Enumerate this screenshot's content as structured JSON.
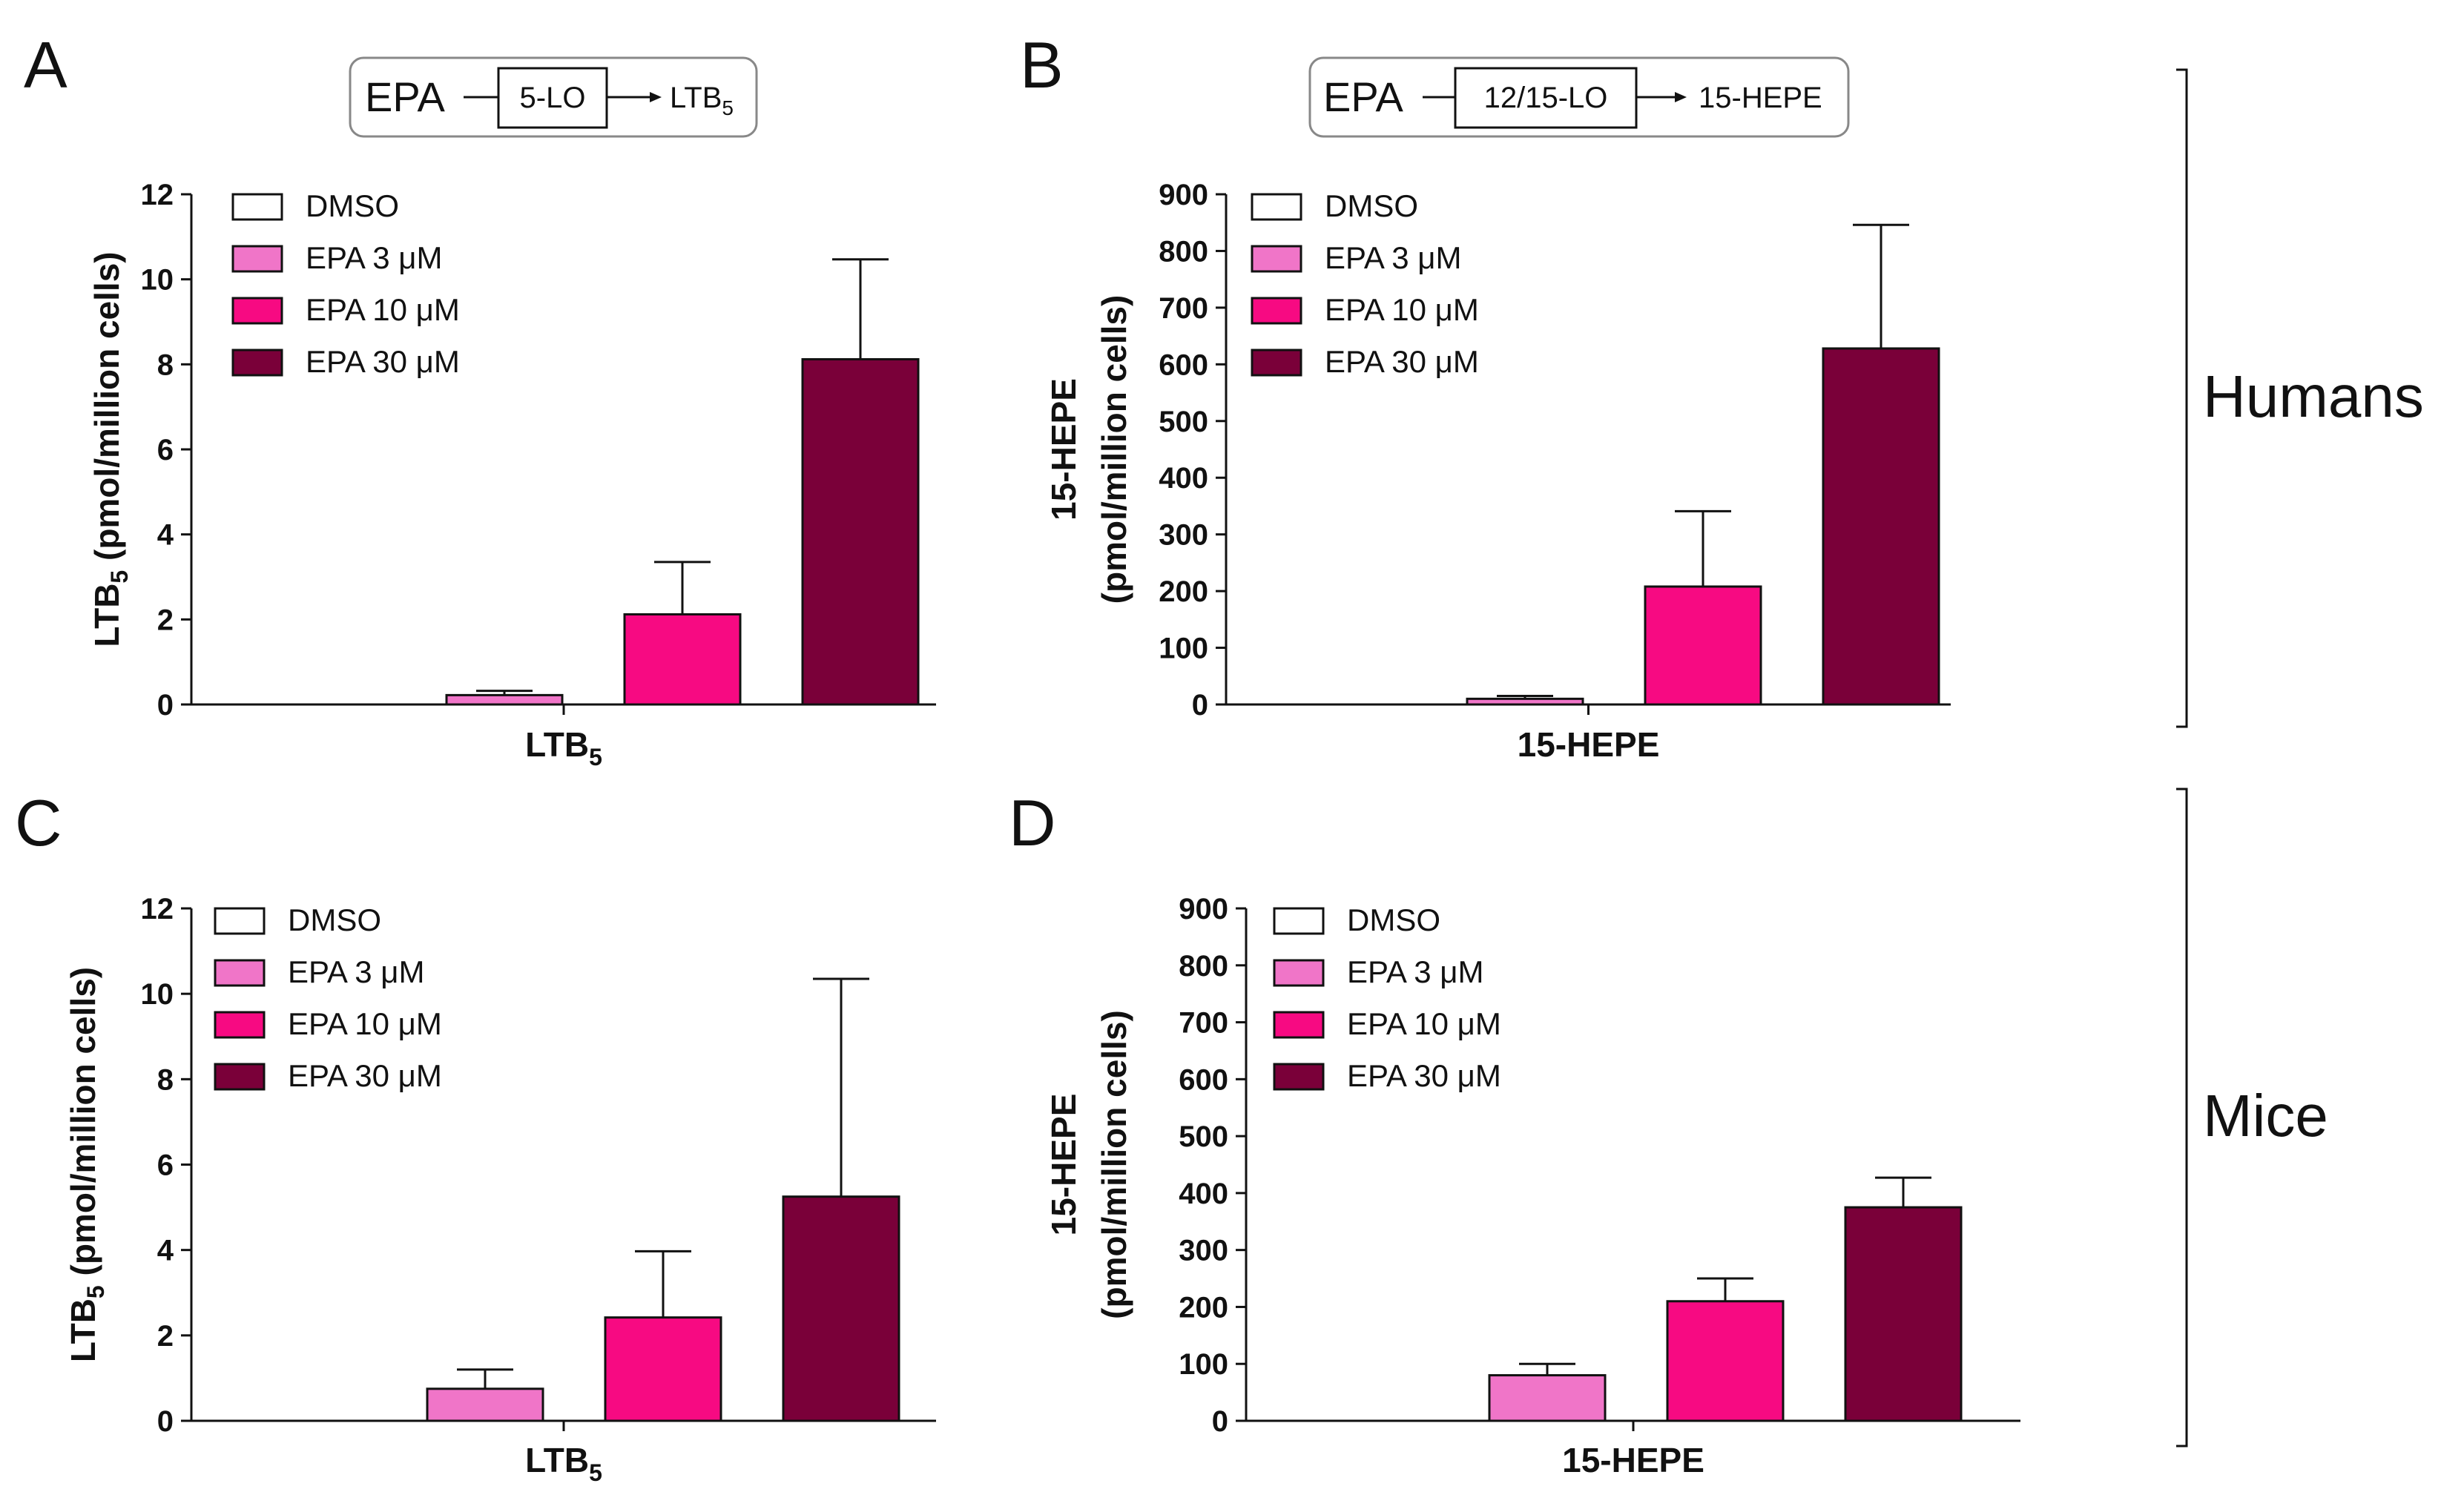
{
  "legend_names": [
    "DMSO",
    "EPA 3 μM",
    "EPA 10 μM",
    "EPA 30 μM"
  ],
  "colors": [
    "#ffffff",
    "#f075c8",
    "#f70a82",
    "#7a0039"
  ],
  "species": [
    "Humans",
    "Mice"
  ],
  "schemes": [
    {
      "substrate": "EPA",
      "enzyme": "5-LO",
      "product": "LTB",
      "product_sub": "5"
    },
    {
      "substrate": "EPA",
      "enzyme": "12/15-LO",
      "product": "15-HEPE",
      "product_sub": ""
    }
  ],
  "chart_data": [
    {
      "panel": "A",
      "type": "bar",
      "species": "Humans",
      "xlabel": "LTB",
      "xlabel_sub": "5",
      "ylabel_lines": [
        {
          "main": "LTB",
          "sub": "5",
          "rest": " (pmol/million cells)"
        }
      ],
      "ylim": [
        0,
        12
      ],
      "yticks": [
        0,
        2,
        4,
        6,
        8,
        10,
        12
      ],
      "series": [
        {
          "name": "DMSO",
          "value": 0,
          "error": 0
        },
        {
          "name": "EPA 3 μM",
          "value": 0.22,
          "error": 0.1
        },
        {
          "name": "EPA 10 μM",
          "value": 2.12,
          "error": 1.23
        },
        {
          "name": "EPA 30 μM",
          "value": 8.12,
          "error": 2.35
        }
      ]
    },
    {
      "panel": "B",
      "type": "bar",
      "species": "Humans",
      "xlabel": "15-HEPE",
      "xlabel_sub": "",
      "ylabel_lines": [
        {
          "main": "15-HEPE",
          "sub": "",
          "rest": ""
        },
        {
          "main": "(pmol/million cells)",
          "sub": "",
          "rest": ""
        }
      ],
      "ylim": [
        0,
        900
      ],
      "yticks": [
        0,
        100,
        200,
        300,
        400,
        500,
        600,
        700,
        800,
        900
      ],
      "series": [
        {
          "name": "DMSO",
          "value": 0,
          "error": 0
        },
        {
          "name": "EPA 3 μM",
          "value": 10,
          "error": 5
        },
        {
          "name": "EPA 10 μM",
          "value": 208,
          "error": 133
        },
        {
          "name": "EPA 30 μM",
          "value": 628,
          "error": 218
        }
      ]
    },
    {
      "panel": "C",
      "type": "bar",
      "species": "Mice",
      "xlabel": "LTB",
      "xlabel_sub": "5",
      "ylabel_lines": [
        {
          "main": "LTB",
          "sub": "5",
          "rest": " (pmol/million cells)"
        }
      ],
      "ylim": [
        0,
        12
      ],
      "yticks": [
        0,
        2,
        4,
        6,
        8,
        10,
        12
      ],
      "series": [
        {
          "name": "DMSO",
          "value": 0,
          "error": 0
        },
        {
          "name": "EPA 3 μM",
          "value": 0.75,
          "error": 0.45
        },
        {
          "name": "EPA 10 μM",
          "value": 2.42,
          "error": 1.55
        },
        {
          "name": "EPA 30 μM",
          "value": 5.25,
          "error": 5.1
        }
      ]
    },
    {
      "panel": "D",
      "type": "bar",
      "species": "Mice",
      "xlabel": "15-HEPE",
      "xlabel_sub": "",
      "ylabel_lines": [
        {
          "main": "15-HEPE",
          "sub": "",
          "rest": ""
        },
        {
          "main": "(pmol/million cells)",
          "sub": "",
          "rest": ""
        }
      ],
      "ylim": [
        0,
        900
      ],
      "yticks": [
        0,
        100,
        200,
        300,
        400,
        500,
        600,
        700,
        800,
        900
      ],
      "series": [
        {
          "name": "DMSO",
          "value": 0,
          "error": 0
        },
        {
          "name": "EPA 3 μM",
          "value": 80,
          "error": 20
        },
        {
          "name": "EPA 10 μM",
          "value": 210,
          "error": 40
        },
        {
          "name": "EPA 30 μM",
          "value": 375,
          "error": 52
        }
      ]
    }
  ]
}
